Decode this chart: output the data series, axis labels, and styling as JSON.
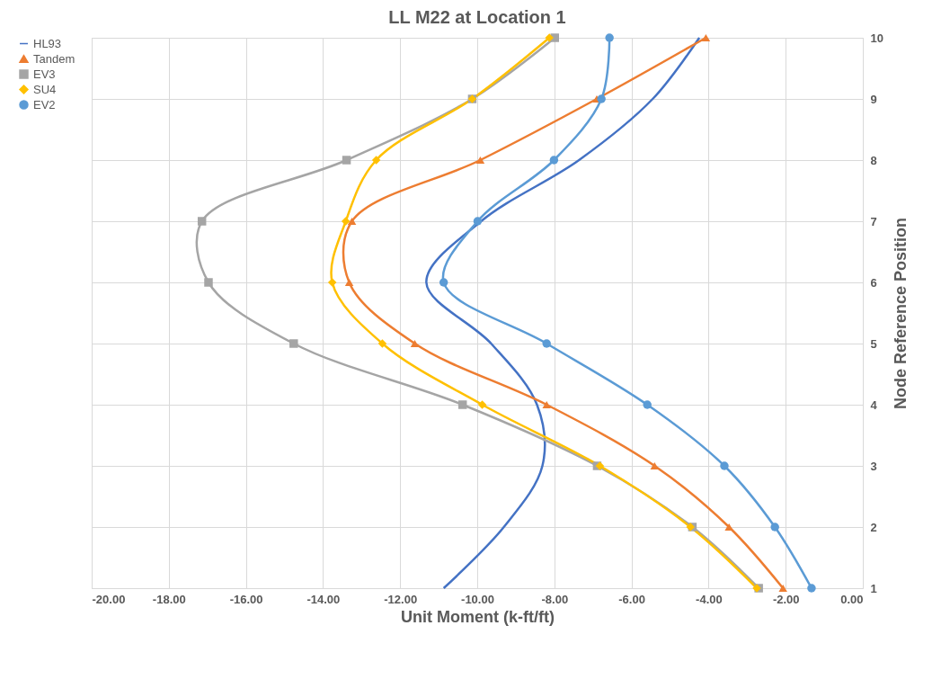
{
  "chart_data": {
    "type": "line",
    "title": "LL M22 at Location 1",
    "xlabel": "Unit Moment (k-ft/ft)",
    "ylabel": "Node Reference Position",
    "xlim": [
      -20,
      0
    ],
    "xticks": [
      {
        "value": -20,
        "label": "-20.00"
      },
      {
        "value": -18,
        "label": "-18.00"
      },
      {
        "value": -16,
        "label": "-16.00"
      },
      {
        "value": -14,
        "label": "-14.00"
      },
      {
        "value": -12,
        "label": "-12.00"
      },
      {
        "value": -10,
        "label": "-10.00"
      },
      {
        "value": -8,
        "label": "-8.00"
      },
      {
        "value": -6,
        "label": "-6.00"
      },
      {
        "value": -4,
        "label": "-4.00"
      },
      {
        "value": -2,
        "label": "-2.00"
      },
      {
        "value": 0,
        "label": "0.00"
      }
    ],
    "ylim": [
      1,
      10
    ],
    "yticks": [
      1,
      2,
      3,
      4,
      5,
      6,
      7,
      8,
      9,
      10
    ],
    "grid": true,
    "legend": "left",
    "series": [
      {
        "name": "HL93",
        "color": "#4472c4",
        "marker": "none",
        "x": [
          -10.87,
          -9.31,
          -8.31,
          -8.45,
          -9.64,
          -11.32,
          -9.9,
          -7.36,
          -5.45,
          -4.24
        ],
        "values": [
          1,
          2,
          3,
          4,
          5,
          6,
          7,
          8,
          9,
          10
        ]
      },
      {
        "name": "Tandem",
        "color": "#ed7d31",
        "marker": "triangle",
        "x": [
          -2.07,
          -3.47,
          -5.4,
          -8.2,
          -11.62,
          -13.32,
          -13.25,
          -9.92,
          -6.9,
          -4.07
        ],
        "values": [
          1,
          2,
          3,
          4,
          5,
          6,
          7,
          8,
          9,
          10
        ]
      },
      {
        "name": "EV3",
        "color": "#a5a5a5",
        "marker": "square",
        "x": [
          -2.7,
          -4.42,
          -6.89,
          -10.38,
          -14.76,
          -16.97,
          -17.14,
          -13.39,
          -10.13,
          -7.99
        ],
        "values": [
          1,
          2,
          3,
          4,
          5,
          6,
          7,
          8,
          9,
          10
        ]
      },
      {
        "name": "SU4",
        "color": "#ffc000",
        "marker": "diamond",
        "x": [
          -2.75,
          -4.47,
          -6.82,
          -9.87,
          -12.46,
          -13.76,
          -13.41,
          -12.62,
          -10.13,
          -8.13
        ],
        "values": [
          1,
          2,
          3,
          4,
          5,
          6,
          7,
          8,
          9,
          10
        ]
      },
      {
        "name": "EV2",
        "color": "#5b9bd5",
        "marker": "circle",
        "x": [
          -1.33,
          -2.28,
          -3.59,
          -5.59,
          -8.2,
          -10.87,
          -9.99,
          -8.01,
          -6.78,
          -6.57
        ],
        "values": [
          1,
          2,
          3,
          4,
          5,
          6,
          7,
          8,
          9,
          10
        ]
      }
    ]
  }
}
